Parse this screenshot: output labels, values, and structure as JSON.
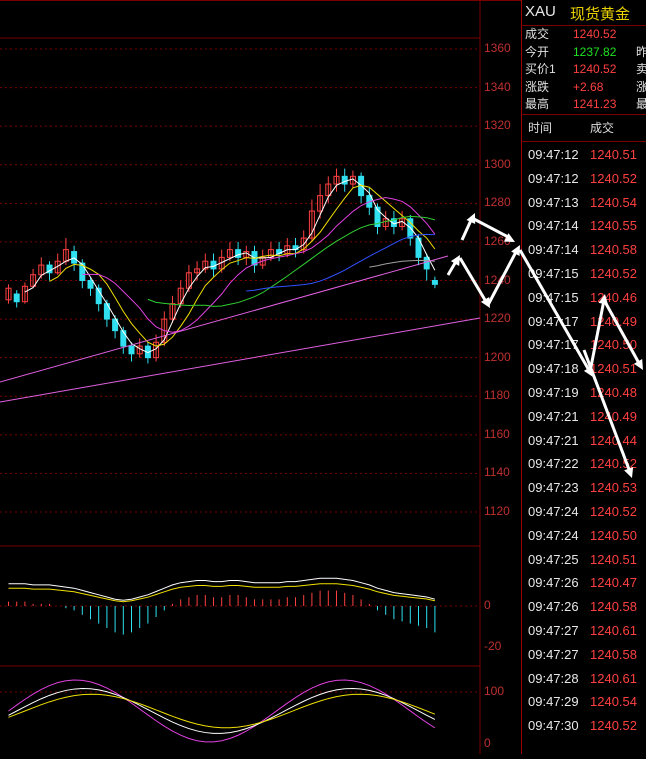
{
  "quote": {
    "symbol": "XAU",
    "name": "现货黄金",
    "rows": [
      {
        "label": "成交",
        "value": "1240.52",
        "color": "#ff4040",
        "trunc": ""
      },
      {
        "label": "今开",
        "value": "1237.82",
        "color": "#20e020",
        "trunc": "昨"
      },
      {
        "label": "买价1",
        "value": "1240.52",
        "color": "#ff4040",
        "trunc": "卖"
      },
      {
        "label": "涨跌",
        "value": "+2.68",
        "color": "#ff4040",
        "trunc": "涨"
      },
      {
        "label": "最高",
        "value": "1241.23",
        "color": "#ff4040",
        "trunc": "最"
      }
    ]
  },
  "ticks": {
    "header_time": "时间",
    "header_price": "成交",
    "rows": [
      {
        "time": "09:47:12",
        "price": "1240.51"
      },
      {
        "time": "09:47:12",
        "price": "1240.52"
      },
      {
        "time": "09:47:13",
        "price": "1240.54"
      },
      {
        "time": "09:47:14",
        "price": "1240.55"
      },
      {
        "time": "09:47:14",
        "price": "1240.58"
      },
      {
        "time": "09:47:15",
        "price": "1240.52"
      },
      {
        "time": "09:47:15",
        "price": "1240.46"
      },
      {
        "time": "09:47:17",
        "price": "1240.49"
      },
      {
        "time": "09:47:17",
        "price": "1240.50"
      },
      {
        "time": "09:47:18",
        "price": "1240.51"
      },
      {
        "time": "09:47:19",
        "price": "1240.48"
      },
      {
        "time": "09:47:21",
        "price": "1240.49"
      },
      {
        "time": "09:47:21",
        "price": "1240.44"
      },
      {
        "time": "09:47:22",
        "price": "1240.52"
      },
      {
        "time": "09:47:23",
        "price": "1240.53"
      },
      {
        "time": "09:47:24",
        "price": "1240.52"
      },
      {
        "time": "09:47:24",
        "price": "1240.50"
      },
      {
        "time": "09:47:25",
        "price": "1240.51"
      },
      {
        "time": "09:47:26",
        "price": "1240.47"
      },
      {
        "time": "09:47:26",
        "price": "1240.58"
      },
      {
        "time": "09:47:27",
        "price": "1240.61"
      },
      {
        "time": "09:47:27",
        "price": "1240.58"
      },
      {
        "time": "09:47:28",
        "price": "1240.61"
      },
      {
        "time": "09:47:29",
        "price": "1240.54"
      },
      {
        "time": "09:47:30",
        "price": "1240.52"
      }
    ]
  },
  "price_axis": [
    "1360",
    "1340",
    "1320",
    "1300",
    "1280",
    "1260",
    "1240",
    "1220",
    "1200",
    "1180",
    "1160",
    "1140",
    "1120"
  ],
  "macd_axis": [
    "0",
    "-20"
  ],
  "kdj_axis": [
    "100",
    "0"
  ],
  "colors": {
    "up": "#ff4040",
    "down": "#30e0f0",
    "grid": "#7a0000"
  },
  "chart_data": {
    "type": "candlestick",
    "ylim": [
      1100,
      1370
    ],
    "candles": [
      [
        1230,
        1236,
        1228,
        1238
      ],
      [
        1233,
        1229,
        1226,
        1235
      ],
      [
        1229,
        1237,
        1228,
        1239
      ],
      [
        1237,
        1243,
        1236,
        1246
      ],
      [
        1243,
        1248,
        1241,
        1252
      ],
      [
        1248,
        1244,
        1240,
        1250
      ],
      [
        1244,
        1250,
        1243,
        1254
      ],
      [
        1250,
        1256,
        1248,
        1262
      ],
      [
        1255,
        1249,
        1245,
        1258
      ],
      [
        1249,
        1240,
        1236,
        1251
      ],
      [
        1240,
        1236,
        1232,
        1242
      ],
      [
        1236,
        1228,
        1224,
        1238
      ],
      [
        1228,
        1220,
        1216,
        1230
      ],
      [
        1220,
        1214,
        1210,
        1222
      ],
      [
        1214,
        1206,
        1202,
        1216
      ],
      [
        1206,
        1202,
        1198,
        1208
      ],
      [
        1202,
        1206,
        1200,
        1210
      ],
      [
        1206,
        1200,
        1197,
        1208
      ],
      [
        1200,
        1208,
        1198,
        1212
      ],
      [
        1208,
        1220,
        1206,
        1224
      ],
      [
        1220,
        1228,
        1218,
        1232
      ],
      [
        1228,
        1236,
        1226,
        1240
      ],
      [
        1236,
        1244,
        1234,
        1248
      ],
      [
        1244,
        1246,
        1240,
        1250
      ],
      [
        1246,
        1250,
        1244,
        1254
      ],
      [
        1250,
        1246,
        1242,
        1254
      ],
      [
        1246,
        1252,
        1244,
        1256
      ],
      [
        1252,
        1256,
        1250,
        1260
      ],
      [
        1256,
        1252,
        1248,
        1260
      ],
      [
        1252,
        1255,
        1248,
        1258
      ],
      [
        1255,
        1248,
        1244,
        1258
      ],
      [
        1248,
        1252,
        1246,
        1256
      ],
      [
        1252,
        1256,
        1250,
        1260
      ],
      [
        1256,
        1254,
        1250,
        1260
      ],
      [
        1254,
        1258,
        1252,
        1262
      ],
      [
        1258,
        1256,
        1252,
        1262
      ],
      [
        1256,
        1262,
        1254,
        1266
      ],
      [
        1262,
        1276,
        1260,
        1282
      ],
      [
        1276,
        1284,
        1272,
        1290
      ],
      [
        1284,
        1290,
        1280,
        1294
      ],
      [
        1290,
        1294,
        1286,
        1298
      ],
      [
        1294,
        1290,
        1286,
        1298
      ],
      [
        1290,
        1294,
        1288,
        1297
      ],
      [
        1294,
        1284,
        1280,
        1296
      ],
      [
        1284,
        1278,
        1274,
        1288
      ],
      [
        1278,
        1268,
        1264,
        1280
      ],
      [
        1268,
        1272,
        1266,
        1276
      ],
      [
        1272,
        1268,
        1264,
        1276
      ],
      [
        1268,
        1272,
        1266,
        1276
      ],
      [
        1272,
        1262,
        1258,
        1274
      ],
      [
        1262,
        1252,
        1248,
        1264
      ],
      [
        1252,
        1246,
        1240,
        1254
      ],
      [
        1240,
        1238,
        1236,
        1242
      ]
    ],
    "macd_hist": [
      2,
      2,
      2,
      1,
      1,
      1,
      0,
      -1,
      -2,
      -4,
      -6,
      -8,
      -10,
      -12,
      -13,
      -12,
      -10,
      -8,
      -5,
      -2,
      1,
      3,
      4,
      5,
      5,
      4,
      4,
      5,
      5,
      4,
      3,
      3,
      3,
      3,
      4,
      4,
      5,
      6,
      7,
      7,
      7,
      6,
      5,
      3,
      1,
      -2,
      -4,
      -6,
      -7,
      -8,
      -9,
      -10,
      -12
    ]
  }
}
